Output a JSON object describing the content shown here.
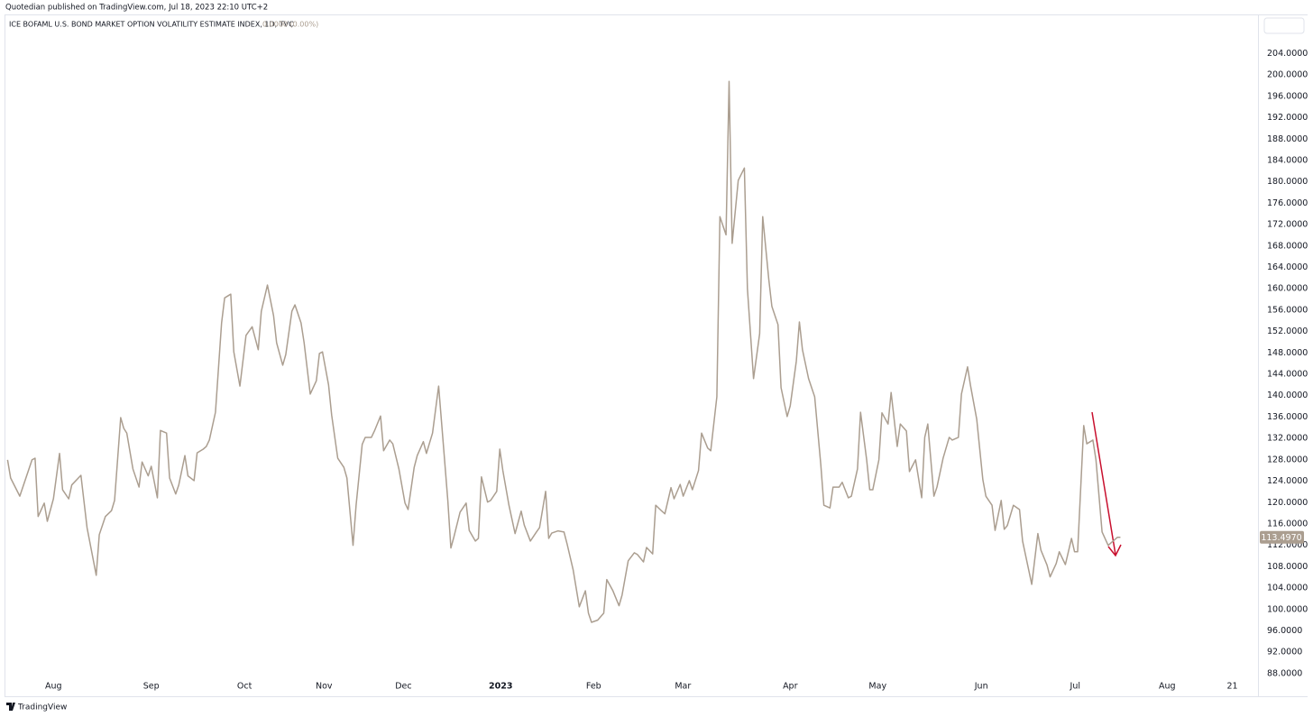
{
  "header": {
    "published_by": "Quotedian published on TradingView.com, Jul 18, 2023 22:10 UTC+2"
  },
  "chart_data": {
    "type": "line",
    "title": "ICE BOFAML U.S. BOND MARKET OPTION VOLATILITY ESTIMATE INDEX, 1D, TVC",
    "change": "0.0000 (0.00%)",
    "color": "#ab9e90",
    "x": [
      -1,
      0,
      3,
      7,
      8,
      9,
      11,
      12,
      14,
      16,
      17,
      19,
      20,
      23,
      25,
      28,
      29,
      31,
      33,
      34,
      36,
      37,
      38,
      40,
      42,
      43,
      45,
      46,
      48,
      49,
      51,
      52,
      54,
      55,
      57,
      58,
      60,
      61,
      63,
      64,
      65,
      67,
      69,
      70,
      72,
      73,
      75,
      77,
      79,
      81,
      82,
      84,
      86,
      87,
      89,
      90,
      92,
      93,
      95,
      96,
      98,
      100,
      101,
      102,
      104,
      105,
      107,
      109,
      110,
      112,
      113,
      115,
      116,
      118,
      119,
      121,
      122,
      124,
      125,
      127,
      129,
      130,
      132,
      133,
      135,
      136,
      138,
      140,
      141,
      143,
      144,
      145,
      147,
      149,
      150,
      152,
      153,
      154,
      156,
      157,
      159,
      160,
      161,
      163,
      165,
      167,
      168,
      170,
      172,
      173,
      175,
      176,
      177,
      179,
      181,
      182,
      184,
      186,
      188,
      189,
      190,
      192,
      194,
      195,
      197,
      199,
      200,
      202,
      204,
      205,
      207,
      208,
      210,
      211,
      213,
      214,
      216,
      217,
      219,
      220,
      222,
      223,
      225,
      226,
      228,
      229,
      231,
      232,
      234,
      235,
      236,
      238,
      240,
      241,
      243,
      245,
      246,
      248,
      249,
      251,
      252,
      254,
      255,
      257,
      258,
      259,
      261,
      263,
      265,
      266,
      268,
      269,
      271,
      272,
      274,
      275,
      277,
      278,
      280,
      281,
      282,
      284,
      285,
      287,
      288,
      290,
      291,
      293,
      294,
      296,
      298,
      299,
      300,
      302,
      303,
      305,
      307,
      308,
      310,
      311,
      313,
      314,
      316,
      318,
      319,
      321,
      322,
      324,
      325,
      326,
      328,
      330,
      331,
      333,
      334,
      336,
      337,
      339,
      340,
      342,
      343,
      345,
      347,
      348,
      349,
      351,
      352,
      354,
      355,
      357,
      359,
      360,
      362,
      363
    ],
    "values": [
      128.0,
      124.6,
      121.2,
      128.0,
      128.3,
      117.4,
      119.9,
      116.5,
      120.7,
      129.2,
      122.4,
      120.7,
      123.3,
      125.1,
      115.3,
      106.4,
      114.0,
      117.4,
      118.5,
      120.4,
      135.9,
      133.9,
      133.0,
      126.3,
      122.9,
      127.6,
      125.0,
      126.8,
      120.9,
      133.5,
      133.0,
      124.6,
      121.6,
      123.3,
      128.8,
      125.0,
      124.1,
      129.3,
      130.0,
      130.5,
      131.7,
      136.9,
      153.6,
      158.3,
      159.0,
      148.2,
      141.8,
      151.3,
      152.9,
      148.6,
      155.8,
      160.7,
      155.0,
      149.9,
      145.7,
      147.7,
      155.8,
      157.0,
      153.6,
      149.9,
      140.3,
      142.8,
      147.9,
      148.2,
      142.0,
      136.4,
      128.3,
      126.6,
      124.6,
      112.0,
      119.5,
      130.9,
      132.2,
      132.2,
      133.4,
      136.2,
      129.7,
      131.7,
      131.0,
      126.3,
      119.9,
      118.7,
      126.6,
      128.8,
      131.4,
      129.2,
      133.0,
      141.8,
      134.7,
      120.4,
      111.5,
      113.6,
      118.2,
      119.9,
      114.8,
      112.8,
      113.3,
      124.8,
      120.1,
      120.4,
      122.1,
      130.0,
      126.0,
      119.5,
      114.2,
      118.4,
      115.8,
      112.8,
      114.5,
      115.3,
      122.1,
      113.3,
      114.3,
      114.7,
      114.5,
      112.3,
      107.4,
      100.5,
      103.5,
      99.3,
      97.6,
      98.0,
      99.3,
      105.6,
      103.5,
      100.7,
      102.7,
      109.1,
      110.6,
      110.3,
      108.9,
      111.6,
      110.4,
      119.5,
      118.4,
      117.9,
      122.8,
      120.7,
      123.4,
      121.2,
      124.1,
      122.4,
      126.0,
      133.0,
      130.2,
      129.7,
      139.8,
      173.5,
      170.1,
      198.8,
      168.5,
      180.3,
      182.6,
      160.0,
      143.2,
      151.6,
      173.5,
      161.7,
      156.7,
      153.3,
      141.5,
      136.1,
      138.1,
      146.5,
      153.8,
      148.6,
      143.2,
      139.8,
      127.1,
      119.5,
      119.0,
      122.9,
      122.9,
      123.8,
      120.9,
      121.2,
      126.3,
      136.9,
      128.0,
      122.4,
      122.4,
      128.0,
      136.8,
      134.7,
      140.6,
      130.5,
      134.7,
      133.4,
      125.8,
      128.0,
      120.9,
      132.2,
      134.7,
      121.2,
      122.9,
      128.3,
      132.2,
      131.7,
      132.2,
      140.3,
      145.4,
      141.8,
      135.6,
      124.3,
      121.2,
      119.5,
      114.8,
      120.4,
      115.0,
      115.7,
      119.5,
      118.7,
      112.8,
      107.4,
      104.7,
      114.2,
      111.1,
      108.3,
      106.1,
      108.6,
      110.8,
      108.4,
      113.3,
      110.8,
      110.8,
      134.4,
      131.0,
      131.7,
      128.0,
      114.5,
      112.0,
      112.5,
      113.5,
      113.497
    ],
    "price_label": {
      "value": 113.497,
      "label": "113.4970"
    },
    "xlim": [
      -2,
      408
    ],
    "xticks": [
      {
        "value": 14,
        "label": "Aug"
      },
      {
        "value": 46,
        "label": "Sep"
      },
      {
        "value": 76.5,
        "label": "Oct"
      },
      {
        "value": 102.5,
        "label": "Nov"
      },
      {
        "value": 128.5,
        "label": "Dec"
      },
      {
        "value": 160.3,
        "label": "2023"
      },
      {
        "value": 190.7,
        "label": "Feb"
      },
      {
        "value": 219.9,
        "label": "Mar"
      },
      {
        "value": 255,
        "label": "Apr"
      },
      {
        "value": 283.6,
        "label": "May"
      },
      {
        "value": 317.5,
        "label": "Jun"
      },
      {
        "value": 348.2,
        "label": "Jul"
      },
      {
        "value": 378.3,
        "label": "Aug"
      },
      {
        "value": 399.6,
        "label": "21"
      }
    ],
    "ylim": [
      84.1,
      211
    ],
    "yticks": [
      {
        "value": 88,
        "label": "88.0000"
      },
      {
        "value": 92,
        "label": "92.0000"
      },
      {
        "value": 96,
        "label": "96.0000"
      },
      {
        "value": 100,
        "label": "100.0000"
      },
      {
        "value": 104,
        "label": "104.0000"
      },
      {
        "value": 108,
        "label": "108.0000"
      },
      {
        "value": 112,
        "label": "112.0000"
      },
      {
        "value": 116,
        "label": "116.0000"
      },
      {
        "value": 120,
        "label": "120.0000"
      },
      {
        "value": 124,
        "label": "124.0000"
      },
      {
        "value": 128,
        "label": "128.0000"
      },
      {
        "value": 132,
        "label": "132.0000"
      },
      {
        "value": 136,
        "label": "136.0000"
      },
      {
        "value": 140,
        "label": "140.0000"
      },
      {
        "value": 144,
        "label": "144.0000"
      },
      {
        "value": 148,
        "label": "148.0000"
      },
      {
        "value": 152,
        "label": "152.0000"
      },
      {
        "value": 156,
        "label": "156.0000"
      },
      {
        "value": 160,
        "label": "160.0000"
      },
      {
        "value": 164,
        "label": "164.0000"
      },
      {
        "value": 168,
        "label": "168.0000"
      },
      {
        "value": 172,
        "label": "172.0000"
      },
      {
        "value": 176,
        "label": "176.0000"
      },
      {
        "value": 180,
        "label": "180.0000"
      },
      {
        "value": 184,
        "label": "184.0000"
      },
      {
        "value": 188,
        "label": "188.0000"
      },
      {
        "value": 192,
        "label": "192.0000"
      },
      {
        "value": 196,
        "label": "196.0000"
      },
      {
        "value": 200,
        "label": "200.0000"
      },
      {
        "value": 204,
        "label": "204.0000"
      }
    ],
    "grid": false
  },
  "footer": {
    "brand": "TradingView"
  }
}
